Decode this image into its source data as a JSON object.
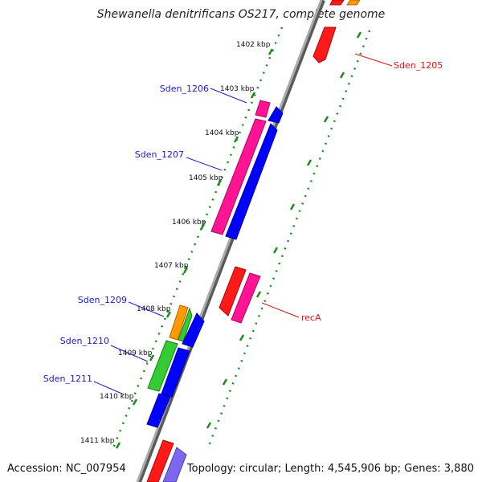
{
  "header": {
    "title": "Shewanella denitrificans OS217, complete genome"
  },
  "footer": {
    "accession": "Accession: NC_007954",
    "summary": "Topology: circular; Length: 4,545,906 bp; Genes: 3,880"
  },
  "ticks": [
    {
      "label": "1402 kbp"
    },
    {
      "label": "1403 kbp"
    },
    {
      "label": "1404 kbp"
    },
    {
      "label": "1405 kbp"
    },
    {
      "label": "1406 kbp"
    },
    {
      "label": "1407 kbp"
    },
    {
      "label": "1408 kbp"
    },
    {
      "label": "1409 kbp"
    },
    {
      "label": "1410 kbp"
    },
    {
      "label": "1411 kbp"
    }
  ],
  "gene_labels": [
    {
      "name": "Sden_1205",
      "color": "#dd1111"
    },
    {
      "name": "Sden_1206",
      "color": "#1a1acc"
    },
    {
      "name": "Sden_1207",
      "color": "#1a1acc"
    },
    {
      "name": "recA",
      "color": "#dd1111"
    },
    {
      "name": "Sden_1209",
      "color": "#1a1acc"
    },
    {
      "name": "Sden_1210",
      "color": "#1a1acc"
    },
    {
      "name": "Sden_1211",
      "color": "#1a1acc"
    }
  ],
  "colors": {
    "backbone": "#8a8a8a",
    "ruler": "#1a8c1a",
    "forward_cds": "#ff1493",
    "reverse_cds": "#0000ff",
    "other_cds": "#ff1a1a",
    "green_cds": "#33cc33",
    "orange_cds": "#ff9900",
    "violet_cds": "#7b68ee"
  }
}
